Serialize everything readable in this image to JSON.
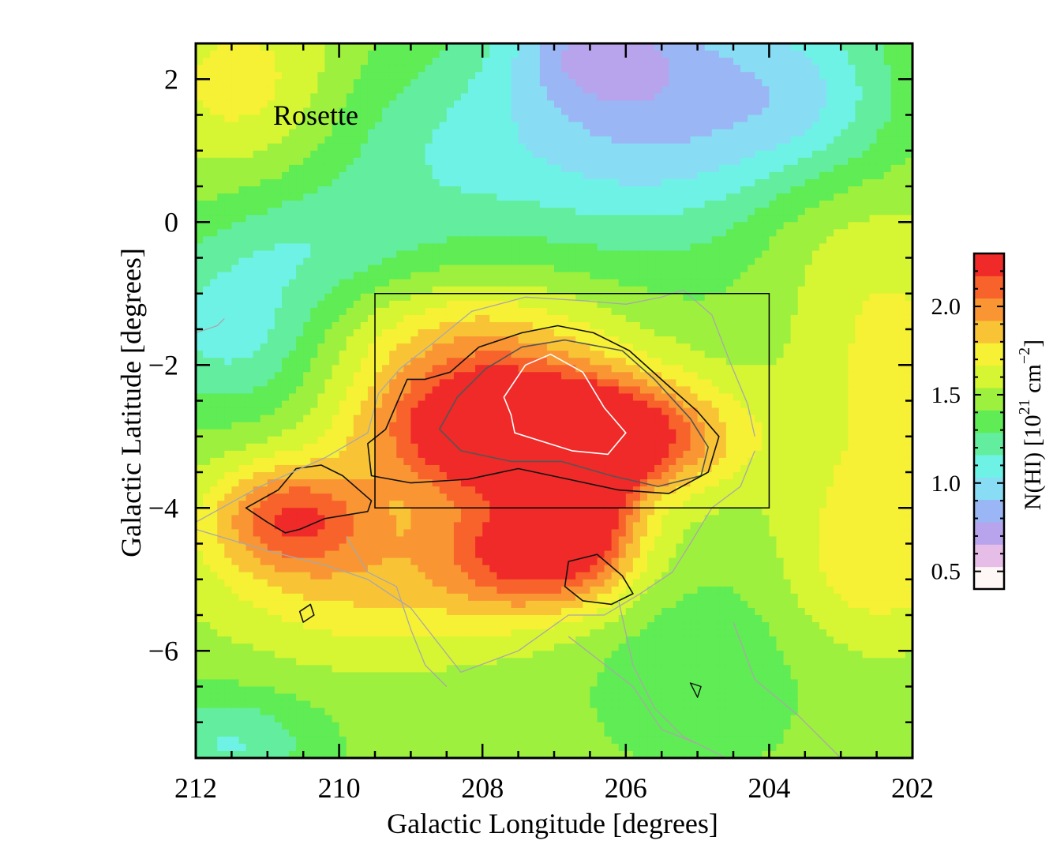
{
  "chart_data": {
    "type": "heatmap",
    "annotation": "Rosette",
    "xlabel": "Galactic Longitude [degrees]",
    "ylabel": "Galactic Latitude [degrees]",
    "xlim": [
      212,
      202
    ],
    "ylim": [
      -7.5,
      2.5
    ],
    "xticks": [
      "212",
      "210",
      "208",
      "206",
      "204",
      "202"
    ],
    "xtick_values": [
      212,
      210,
      208,
      206,
      204,
      202
    ],
    "yticks": [
      "2",
      "0",
      "−2",
      "−4",
      "−6"
    ],
    "ytick_values": [
      2,
      0,
      -2,
      -4,
      -6
    ],
    "grid": false,
    "colorbar": {
      "label": "N(HI) [10",
      "label_sup1": "21",
      "label_mid": " cm",
      "label_sup2": "−2",
      "label_end": "]",
      "range": [
        0.4,
        2.3
      ],
      "ticks": [
        "2.0",
        "1.5",
        "1.0",
        "0.5"
      ],
      "tick_values": [
        2.0,
        1.5,
        1.0,
        0.5
      ],
      "colors": [
        "#fff6f6",
        "#e6bde6",
        "#b7a4ec",
        "#9ab6f4",
        "#88ddf4",
        "#6ff2e6",
        "#62ee9e",
        "#5fec55",
        "#9ef03e",
        "#d6f533",
        "#f6f134",
        "#f8c436",
        "#f99633",
        "#f8632c",
        "#ef2a28"
      ]
    },
    "rectangle": {
      "l": [
        209.5,
        204.0
      ],
      "b": [
        -4.0,
        -1.0
      ]
    },
    "field": {
      "base": 1.45,
      "blobs": [
        {
          "l": 206.6,
          "b": -3.05,
          "amp": 0.95,
          "sl": 1.3,
          "sb": 0.55
        },
        {
          "l": 207.4,
          "b": -2.6,
          "amp": 0.45,
          "sl": 1.4,
          "sb": 0.7
        },
        {
          "l": 208.6,
          "b": -2.9,
          "amp": 0.35,
          "sl": 1.0,
          "sb": 0.8
        },
        {
          "l": 207.2,
          "b": -4.6,
          "amp": 0.75,
          "sl": 0.9,
          "sb": 0.6
        },
        {
          "l": 206.5,
          "b": -4.0,
          "amp": 0.45,
          "sl": 0.45,
          "sb": 0.6
        },
        {
          "l": 210.7,
          "b": -4.1,
          "amp": 0.6,
          "sl": 0.8,
          "sb": 0.55
        },
        {
          "l": 209.5,
          "b": -5.0,
          "amp": 0.35,
          "sl": 1.6,
          "sb": 0.8
        },
        {
          "l": 208.0,
          "b": -1.5,
          "amp": 0.25,
          "sl": 1.3,
          "sb": 0.6
        },
        {
          "l": 211.3,
          "b": 1.9,
          "amp": 0.3,
          "sl": 1.0,
          "sb": 0.9
        },
        {
          "l": 202.3,
          "b": -1.8,
          "amp": 0.25,
          "sl": 1.0,
          "sb": 1.5
        },
        {
          "l": 202.5,
          "b": -4.7,
          "amp": 0.3,
          "sl": 0.9,
          "sb": 0.9
        },
        {
          "l": 203.4,
          "b": 0.3,
          "amp": 0.15,
          "sl": 0.8,
          "sb": 0.8
        },
        {
          "l": 205.5,
          "b": 1.8,
          "amp": -0.55,
          "sl": 1.5,
          "sb": 1.4
        },
        {
          "l": 206.5,
          "b": 2.4,
          "amp": -0.3,
          "sl": 0.8,
          "sb": 0.5
        },
        {
          "l": 203.4,
          "b": 1.5,
          "amp": -0.3,
          "sl": 0.9,
          "sb": 1.0
        },
        {
          "l": 211.5,
          "b": -1.5,
          "amp": -0.35,
          "sl": 0.9,
          "sb": 0.8
        },
        {
          "l": 208.5,
          "b": 1.0,
          "amp": -0.25,
          "sl": 1.6,
          "sb": 1.0
        },
        {
          "l": 210.3,
          "b": -0.3,
          "amp": -0.2,
          "sl": 1.1,
          "sb": 0.6
        },
        {
          "l": 211.5,
          "b": -7.3,
          "amp": -0.3,
          "sl": 0.8,
          "sb": 0.5
        },
        {
          "l": 205.0,
          "b": -6.2,
          "amp": -0.15,
          "sl": 1.0,
          "sb": 0.9
        }
      ]
    },
    "contours": [
      {
        "color": "#ffffff",
        "width": 1.6,
        "closed": true,
        "points": [
          [
            207.7,
            -2.45
          ],
          [
            207.4,
            -2.0
          ],
          [
            207.05,
            -1.85
          ],
          [
            206.6,
            -2.1
          ],
          [
            206.3,
            -2.6
          ],
          [
            206.0,
            -2.95
          ],
          [
            206.25,
            -3.25
          ],
          [
            206.75,
            -3.2
          ],
          [
            207.55,
            -2.95
          ],
          [
            207.6,
            -2.7
          ]
        ]
      },
      {
        "color": "#555555",
        "width": 1.6,
        "closed": true,
        "points": [
          [
            208.6,
            -2.9
          ],
          [
            208.35,
            -2.45
          ],
          [
            207.95,
            -2.05
          ],
          [
            207.45,
            -1.75
          ],
          [
            206.85,
            -1.65
          ],
          [
            206.05,
            -1.8
          ],
          [
            205.6,
            -2.2
          ],
          [
            205.1,
            -2.75
          ],
          [
            204.85,
            -3.15
          ],
          [
            204.95,
            -3.55
          ],
          [
            205.55,
            -3.7
          ],
          [
            206.2,
            -3.55
          ],
          [
            206.9,
            -3.35
          ],
          [
            207.6,
            -3.35
          ],
          [
            208.3,
            -3.2
          ]
        ]
      },
      {
        "color": "#111111",
        "width": 1.6,
        "closed": true,
        "points": [
          [
            208.45,
            -2.1
          ],
          [
            208.05,
            -1.75
          ],
          [
            207.45,
            -1.55
          ],
          [
            206.95,
            -1.45
          ],
          [
            206.45,
            -1.55
          ],
          [
            205.95,
            -1.8
          ],
          [
            205.45,
            -2.25
          ],
          [
            205.0,
            -2.65
          ],
          [
            204.7,
            -3.0
          ],
          [
            204.85,
            -3.5
          ],
          [
            205.4,
            -3.8
          ],
          [
            206.1,
            -3.75
          ],
          [
            206.8,
            -3.6
          ],
          [
            207.5,
            -3.45
          ],
          [
            208.2,
            -3.6
          ],
          [
            209.0,
            -3.65
          ],
          [
            209.55,
            -3.55
          ],
          [
            209.6,
            -3.1
          ],
          [
            209.35,
            -2.9
          ],
          [
            209.2,
            -2.55
          ],
          [
            209.05,
            -2.2
          ],
          [
            208.8,
            -2.2
          ]
        ]
      },
      {
        "color": "#111111",
        "width": 1.6,
        "closed": true,
        "points": [
          [
            211.3,
            -4.0
          ],
          [
            210.85,
            -3.75
          ],
          [
            210.6,
            -3.45
          ],
          [
            210.25,
            -3.4
          ],
          [
            209.95,
            -3.55
          ],
          [
            209.55,
            -3.9
          ],
          [
            209.6,
            -4.05
          ],
          [
            210.2,
            -4.15
          ],
          [
            210.55,
            -4.3
          ],
          [
            210.75,
            -4.35
          ],
          [
            211.0,
            -4.2
          ]
        ]
      },
      {
        "color": "#111111",
        "width": 1.6,
        "closed": true,
        "points": [
          [
            206.8,
            -4.75
          ],
          [
            206.4,
            -4.65
          ],
          [
            206.05,
            -4.95
          ],
          [
            205.9,
            -5.2
          ],
          [
            206.2,
            -5.35
          ],
          [
            206.6,
            -5.3
          ],
          [
            206.85,
            -5.1
          ]
        ]
      },
      {
        "color": "#111111",
        "width": 1.6,
        "closed": true,
        "points": [
          [
            210.55,
            -5.45
          ],
          [
            210.4,
            -5.35
          ],
          [
            210.35,
            -5.5
          ],
          [
            210.5,
            -5.6
          ]
        ]
      },
      {
        "color": "#111111",
        "width": 1.4,
        "closed": true,
        "points": [
          [
            205.1,
            -6.45
          ],
          [
            204.95,
            -6.5
          ],
          [
            205.0,
            -6.65
          ]
        ]
      },
      {
        "color": "#a8a8a8",
        "width": 1.3,
        "closed": false,
        "points": [
          [
            212,
            -4.2
          ],
          [
            211.1,
            -3.7
          ],
          [
            210.2,
            -3.3
          ],
          [
            209.6,
            -2.95
          ],
          [
            209.45,
            -2.4
          ],
          [
            209.15,
            -2.05
          ],
          [
            208.7,
            -1.7
          ],
          [
            208.15,
            -1.25
          ],
          [
            207.4,
            -1.05
          ],
          [
            206.6,
            -1.1
          ],
          [
            206.0,
            -1.15
          ],
          [
            205.5,
            -1.05
          ],
          [
            205.2,
            -0.95
          ],
          [
            204.8,
            -1.3
          ],
          [
            204.55,
            -1.95
          ],
          [
            204.3,
            -2.55
          ],
          [
            204.2,
            -3.0
          ]
        ]
      },
      {
        "color": "#a8a8a8",
        "width": 1.3,
        "closed": false,
        "points": [
          [
            212,
            -4.3
          ],
          [
            211.0,
            -4.6
          ],
          [
            210.2,
            -4.8
          ],
          [
            209.6,
            -5.0
          ],
          [
            209.0,
            -5.4
          ],
          [
            208.3,
            -6.3
          ],
          [
            207.5,
            -6.0
          ],
          [
            206.8,
            -5.5
          ],
          [
            206.3,
            -5.5
          ],
          [
            205.8,
            -5.2
          ],
          [
            205.35,
            -4.9
          ],
          [
            205.1,
            -4.5
          ],
          [
            204.8,
            -4.0
          ],
          [
            204.4,
            -3.7
          ],
          [
            204.2,
            -3.2
          ]
        ]
      },
      {
        "color": "#a8a8a8",
        "width": 1.3,
        "closed": false,
        "points": [
          [
            209.9,
            -4.4
          ],
          [
            209.6,
            -4.9
          ],
          [
            209.2,
            -5.1
          ],
          [
            209.0,
            -5.7
          ],
          [
            208.8,
            -6.2
          ],
          [
            208.5,
            -6.5
          ]
        ]
      },
      {
        "color": "#a8a8a8",
        "width": 1.3,
        "closed": false,
        "points": [
          [
            206.1,
            -5.3
          ],
          [
            205.9,
            -6.2
          ],
          [
            205.6,
            -6.8
          ],
          [
            205.2,
            -7.2
          ],
          [
            204.6,
            -7.5
          ]
        ]
      },
      {
        "color": "#a8a8a8",
        "width": 1.3,
        "closed": false,
        "points": [
          [
            206.8,
            -5.8
          ],
          [
            205.9,
            -6.5
          ],
          [
            205.5,
            -7.1
          ],
          [
            205.0,
            -7.3
          ]
        ]
      },
      {
        "color": "#a8a8a8",
        "width": 1.3,
        "closed": false,
        "points": [
          [
            204.5,
            -5.6
          ],
          [
            204.2,
            -6.4
          ],
          [
            203.6,
            -6.9
          ],
          [
            203.0,
            -7.5
          ]
        ]
      },
      {
        "color": "#a8a8a8",
        "width": 1.3,
        "closed": false,
        "points": [
          [
            212,
            -1.55
          ],
          [
            211.7,
            -1.45
          ],
          [
            211.6,
            -1.35
          ]
        ]
      }
    ]
  }
}
